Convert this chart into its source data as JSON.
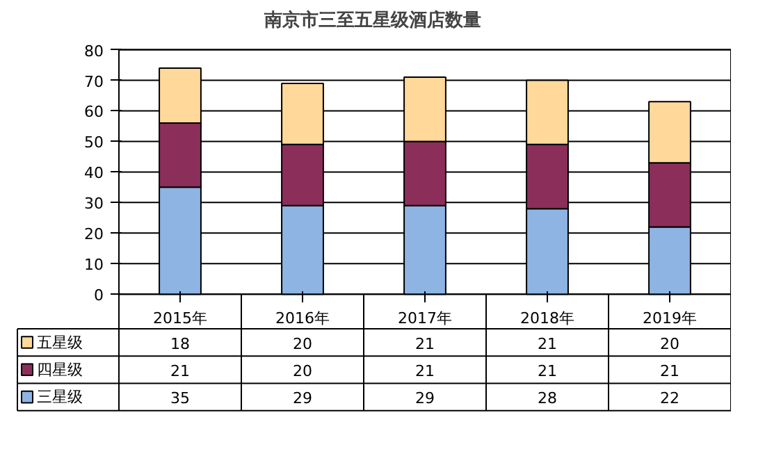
{
  "chart_data": {
    "type": "bar",
    "title": "南京市三至五星级酒店数量",
    "stacked": true,
    "categories": [
      "2015年",
      "2016年",
      "2017年",
      "2018年",
      "2019年"
    ],
    "series": [
      {
        "name": "三星级",
        "color": "#8db4e2",
        "values": [
          35,
          29,
          29,
          28,
          22
        ]
      },
      {
        "name": "四星级",
        "color": "#8b2f5a",
        "values": [
          21,
          20,
          21,
          21,
          21
        ]
      },
      {
        "name": "五星级",
        "color": "#ffd89a",
        "values": [
          18,
          20,
          21,
          21,
          20
        ]
      }
    ],
    "ylim": [
      0,
      80
    ],
    "yticks": [
      0,
      10,
      20,
      30,
      40,
      50,
      60,
      70,
      80
    ],
    "grid": "y",
    "legend": "bottom",
    "data_labels": true
  }
}
